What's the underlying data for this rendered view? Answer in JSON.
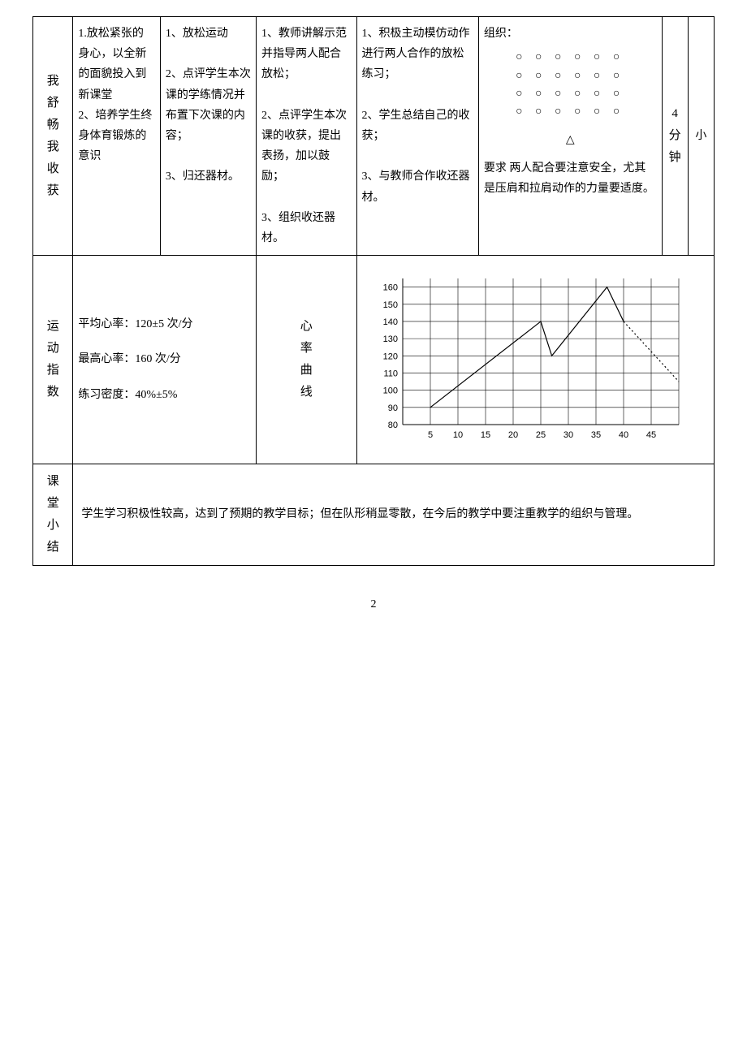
{
  "row1": {
    "label": "我舒畅我收获",
    "col_a": "1.放松紧张的身心，以全新的面貌投入到新课堂\n2、培养学生终身体育锻炼的意识",
    "col_b": "1、放松运动\n\n2、点评学生本次课的学练情况并布置下次课的内容；\n\n3、归还器材。",
    "col_c": "1、教师讲解示范并指导两人配合放松；\n\n2、点评学生本次课的收获，提出表扬，加以鼓励；\n\n3、组织收还器材。",
    "col_d": "1、积极主动模仿动作进行两人合作的放松练习；\n\n2、学生总结自己的收获；\n\n3、与教师合作收还器材。",
    "col_e_title": "组织：",
    "col_e_req": "要求 两人配合要注意安全，尤其是压肩和拉肩动作的力量要适度。",
    "time": "4分钟",
    "intensity": "小"
  },
  "row2": {
    "label": "运动指数",
    "avg_hr": "平均心率：120±5 次/分",
    "max_hr": "最高心率：160 次/分",
    "density": "练习密度：40%±5%",
    "curve_label": "心率曲线",
    "chart": {
      "type": "line",
      "x_ticks": [
        5,
        10,
        15,
        20,
        25,
        30,
        35,
        40,
        45
      ],
      "y_ticks": [
        80,
        90,
        100,
        110,
        120,
        130,
        140,
        150,
        160
      ],
      "xlim": [
        0,
        50
      ],
      "ylim": [
        80,
        165
      ],
      "grid_color": "#000000",
      "background_color": "#ffffff",
      "axis_fontsize": 11,
      "series": [
        {
          "style": "solid",
          "points": [
            [
              5,
              90
            ],
            [
              25,
              140
            ],
            [
              27,
              120
            ],
            [
              37,
              160
            ],
            [
              40,
              140
            ]
          ]
        },
        {
          "style": "dotted",
          "points": [
            [
              40,
              140
            ],
            [
              50,
              105
            ]
          ]
        }
      ]
    }
  },
  "row3": {
    "label": "课堂小结",
    "text": "学生学习积极性较高，达到了预期的教学目标；但在队形稍显零散，在今后的教学中要注重教学的组织与管理。"
  },
  "page_number": "2"
}
